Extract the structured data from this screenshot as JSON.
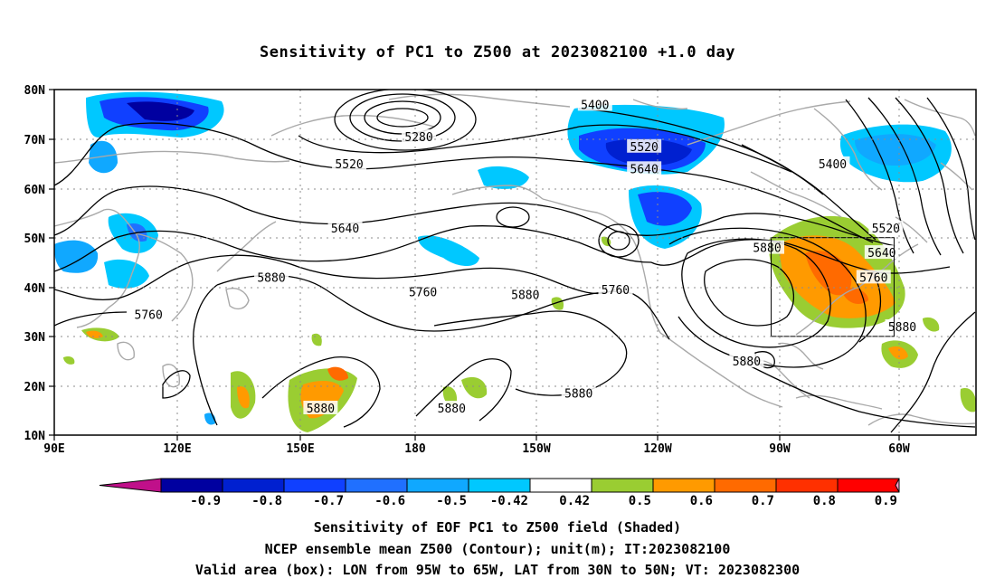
{
  "title": "Sensitivity of PC1 to Z500 at 2023082100 +1.0 day",
  "lat_labels": [
    "80N",
    "70N",
    "60N",
    "50N",
    "40N",
    "30N",
    "20N",
    "10N"
  ],
  "lon_labels": [
    "90E",
    "120E",
    "150E",
    "180",
    "150W",
    "120W",
    "90W",
    "60W"
  ],
  "contour_labels": [
    {
      "text": "5400",
      "lon": -138,
      "lat": 77
    },
    {
      "text": "5280",
      "lon": 179,
      "lat": 70.5
    },
    {
      "text": "5520",
      "lon": 162,
      "lat": 65
    },
    {
      "text": "5520",
      "lon": -126,
      "lat": 68.5
    },
    {
      "text": "5640",
      "lon": -126,
      "lat": 64
    },
    {
      "text": "5400",
      "lon": -80,
      "lat": 65
    },
    {
      "text": "5640",
      "lon": 161,
      "lat": 52
    },
    {
      "text": "5520",
      "lon": -67,
      "lat": 52
    },
    {
      "text": "5880",
      "lon": -96,
      "lat": 48
    },
    {
      "text": "5640",
      "lon": -68,
      "lat": 47
    },
    {
      "text": "5760",
      "lon": -70,
      "lat": 42
    },
    {
      "text": "5880",
      "lon": 143,
      "lat": 42
    },
    {
      "text": "5760",
      "lon": 180,
      "lat": 39
    },
    {
      "text": "5880",
      "lon": -155,
      "lat": 38.5
    },
    {
      "text": "5760",
      "lon": -133,
      "lat": 39.5
    },
    {
      "text": "5760",
      "lon": 113,
      "lat": 34.5
    },
    {
      "text": "5880",
      "lon": -63,
      "lat": 32
    },
    {
      "text": "5880",
      "lon": -101,
      "lat": 25
    },
    {
      "text": "5880",
      "lon": -142,
      "lat": 18.5
    },
    {
      "text": "5880",
      "lon": 155,
      "lat": 15.5
    },
    {
      "text": "5880",
      "lon": -173,
      "lat": 15.5
    }
  ],
  "colorbar": {
    "labels": [
      "-0.9",
      "-0.8",
      "-0.7",
      "-0.6",
      "-0.5",
      "-0.42",
      "0.42",
      "0.5",
      "0.6",
      "0.7",
      "0.8",
      "0.9"
    ],
    "colors": [
      "#0000a0",
      "#0020d0",
      "#1040ff",
      "#2070ff",
      "#10a8ff",
      "#00c8ff",
      "#ffffff",
      "#9acd32",
      "#ff9a00",
      "#ff6a00",
      "#ff3000",
      "#ff0000"
    ],
    "low_end_color": "#c0108a",
    "high_end_color": "#ff9ac8"
  },
  "captions": [
    "Sensitivity of EOF PC1 to Z500 field (Shaded)",
    "NCEP ensemble mean Z500 (Contour); unit(m); IT:2023082100",
    "Valid area (box): LON from 95W to 65W, LAT from 30N to 50N; VT: 2023082300"
  ],
  "valid_box": {
    "lon_min": -95,
    "lon_max": -65,
    "lat_min": 30,
    "lat_max": 50
  }
}
